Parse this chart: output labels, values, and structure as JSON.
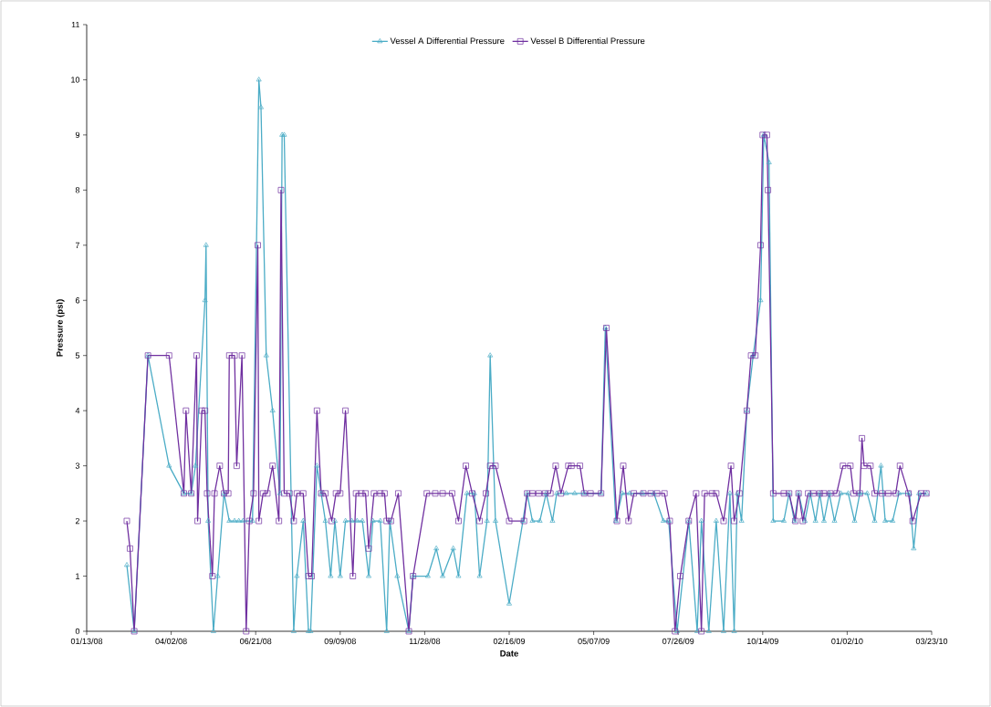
{
  "chart_data": {
    "type": "line",
    "xlabel": "Date",
    "ylabel": "Pressure (psi)",
    "xlim": [
      "2008-01-13",
      "2010-03-23"
    ],
    "xticks": [
      {
        "value": "2008-01-13",
        "label": "01/13/08"
      },
      {
        "value": "2008-04-02",
        "label": "04/02/08"
      },
      {
        "value": "2008-06-21",
        "label": "06/21/08"
      },
      {
        "value": "2008-09-09",
        "label": "09/09/08"
      },
      {
        "value": "2008-11-28",
        "label": "11/28/08"
      },
      {
        "value": "2009-02-16",
        "label": "02/16/09"
      },
      {
        "value": "2009-05-07",
        "label": "05/07/09"
      },
      {
        "value": "2009-07-26",
        "label": "07/26/09"
      },
      {
        "value": "2009-10-14",
        "label": "10/14/09"
      },
      {
        "value": "2010-01-02",
        "label": "01/02/10"
      },
      {
        "value": "2010-03-23",
        "label": "03/23/10"
      }
    ],
    "ylim": [
      0,
      11
    ],
    "yticks": [
      0,
      1,
      2,
      3,
      4,
      5,
      6,
      7,
      8,
      9,
      10,
      11
    ],
    "grid": false,
    "legend": "top",
    "line_style": "solid",
    "series": [
      {
        "name": "Vessel A Differential Pressure",
        "color": "#4bacc6",
        "marker": "triangle",
        "x": [
          "2008-02-20",
          "2008-02-27",
          "2008-03-11",
          "2008-03-31",
          "2008-04-14",
          "2008-04-21",
          "2008-04-25",
          "2008-05-04",
          "2008-05-05",
          "2008-05-07",
          "2008-05-12",
          "2008-05-16",
          "2008-05-22",
          "2008-05-27",
          "2008-06-01",
          "2008-06-05",
          "2008-06-09",
          "2008-06-18",
          "2008-06-24",
          "2008-06-26",
          "2008-07-01",
          "2008-07-07",
          "2008-07-14",
          "2008-07-16",
          "2008-07-18",
          "2008-07-27",
          "2008-07-30",
          "2008-08-05",
          "2008-08-10",
          "2008-08-12",
          "2008-08-18",
          "2008-08-22",
          "2008-08-26",
          "2008-08-31",
          "2008-09-04",
          "2008-09-09",
          "2008-09-14",
          "2008-09-20",
          "2008-09-25",
          "2008-09-30",
          "2008-10-06",
          "2008-10-10",
          "2008-10-17",
          "2008-10-23",
          "2008-10-26",
          "2008-11-02",
          "2008-11-13",
          "2008-11-17",
          "2008-12-01",
          "2008-12-09",
          "2008-12-15",
          "2008-12-25",
          "2008-12-30",
          "2009-01-07",
          "2009-01-14",
          "2009-01-19",
          "2009-01-26",
          "2009-01-29",
          "2009-02-03",
          "2009-02-16",
          "2009-03-01",
          "2009-03-05",
          "2009-03-10",
          "2009-03-17",
          "2009-03-23",
          "2009-03-29",
          "2009-04-02",
          "2009-04-11",
          "2009-04-19",
          "2009-04-28",
          "2009-05-14",
          "2009-05-18",
          "2009-05-28",
          "2009-06-03",
          "2009-06-10",
          "2009-06-22",
          "2009-07-03",
          "2009-07-12",
          "2009-07-17",
          "2009-07-25",
          "2009-08-05",
          "2009-08-13",
          "2009-08-17",
          "2009-08-24",
          "2009-08-31",
          "2009-09-07",
          "2009-09-13",
          "2009-09-17",
          "2009-09-20",
          "2009-09-24",
          "2009-09-29",
          "2009-10-05",
          "2009-10-12",
          "2009-10-15",
          "2009-10-20",
          "2009-10-24",
          "2009-11-03",
          "2009-11-08",
          "2009-11-13",
          "2009-11-17",
          "2009-11-23",
          "2009-11-28",
          "2009-12-03",
          "2009-12-07",
          "2009-12-11",
          "2009-12-16",
          "2009-12-21",
          "2009-12-27",
          "2010-01-03",
          "2010-01-09",
          "2010-01-14",
          "2010-01-21",
          "2010-01-28",
          "2010-02-03",
          "2010-02-07",
          "2010-02-14",
          "2010-02-20",
          "2010-03-02",
          "2010-03-06",
          "2010-03-11",
          "2010-03-18"
        ],
        "values": [
          1.2,
          0,
          5,
          3,
          2.5,
          2.5,
          3,
          6,
          7,
          2,
          0,
          1,
          2.5,
          2,
          2,
          2,
          2,
          2,
          10,
          9.5,
          5,
          4,
          2.5,
          9,
          9,
          0,
          1,
          2,
          0,
          0,
          3,
          2.5,
          2,
          1,
          2,
          1,
          2,
          2,
          2,
          2,
          1,
          2,
          2,
          0,
          2,
          1,
          0,
          1,
          1,
          1.5,
          1,
          1.5,
          1,
          2.5,
          2.5,
          1,
          2,
          5,
          2,
          0.5,
          2,
          2.5,
          2,
          2,
          2.5,
          2,
          2.5,
          2.5,
          2.5,
          2.5,
          2.5,
          5.5,
          2,
          2.5,
          2.5,
          2.5,
          2.5,
          2,
          2,
          0,
          2,
          0,
          2,
          0,
          2,
          0,
          2.5,
          0,
          2.5,
          2,
          4,
          5,
          6,
          9,
          8.5,
          2,
          2,
          2.5,
          2,
          2.5,
          2,
          2.5,
          2,
          2.5,
          2,
          2.5,
          2,
          2.5,
          2.5,
          2,
          2.5,
          2.5,
          2,
          3,
          2,
          2,
          2.5,
          2.5,
          1.5,
          2.5,
          2.5
        ]
      },
      {
        "name": "Vessel B Differential Pressure",
        "color": "#7030a0",
        "marker": "square",
        "x": [
          "2008-02-20",
          "2008-02-23",
          "2008-02-27",
          "2008-03-11",
          "2008-03-31",
          "2008-04-14",
          "2008-04-16",
          "2008-04-21",
          "2008-04-26",
          "2008-04-27",
          "2008-05-01",
          "2008-05-04",
          "2008-05-06",
          "2008-05-11",
          "2008-05-13",
          "2008-05-18",
          "2008-05-22",
          "2008-05-26",
          "2008-05-27",
          "2008-06-01",
          "2008-06-03",
          "2008-06-08",
          "2008-06-12",
          "2008-06-15",
          "2008-06-19",
          "2008-06-23",
          "2008-06-24",
          "2008-06-28",
          "2008-07-02",
          "2008-07-07",
          "2008-07-13",
          "2008-07-15",
          "2008-07-18",
          "2008-07-23",
          "2008-07-27",
          "2008-07-30",
          "2008-08-05",
          "2008-08-10",
          "2008-08-13",
          "2008-08-18",
          "2008-08-22",
          "2008-08-26",
          "2008-09-01",
          "2008-09-05",
          "2008-09-09",
          "2008-09-14",
          "2008-09-21",
          "2008-09-24",
          "2008-09-29",
          "2008-10-03",
          "2008-10-06",
          "2008-10-11",
          "2008-10-17",
          "2008-10-21",
          "2008-10-23",
          "2008-10-27",
          "2008-11-03",
          "2008-11-13",
          "2008-11-17",
          "2008-11-30",
          "2008-12-08",
          "2008-12-15",
          "2008-12-24",
          "2008-12-30",
          "2009-01-06",
          "2009-01-12",
          "2009-01-19",
          "2009-01-25",
          "2009-01-29",
          "2009-02-03",
          "2009-02-16",
          "2009-03-02",
          "2009-03-05",
          "2009-03-10",
          "2009-03-16",
          "2009-03-22",
          "2009-03-27",
          "2009-04-01",
          "2009-04-06",
          "2009-04-13",
          "2009-04-16",
          "2009-04-24",
          "2009-04-28",
          "2009-05-04",
          "2009-05-14",
          "2009-05-19",
          "2009-05-29",
          "2009-06-04",
          "2009-06-09",
          "2009-06-14",
          "2009-06-23",
          "2009-06-30",
          "2009-07-06",
          "2009-07-13",
          "2009-07-18",
          "2009-07-23",
          "2009-07-28",
          "2009-08-05",
          "2009-08-12",
          "2009-08-17",
          "2009-08-20",
          "2009-08-27",
          "2009-08-31",
          "2009-09-07",
          "2009-09-14",
          "2009-09-17",
          "2009-09-22",
          "2009-09-29",
          "2009-10-03",
          "2009-10-07",
          "2009-10-12",
          "2009-10-14",
          "2009-10-18",
          "2009-10-19",
          "2009-10-24",
          "2009-11-03",
          "2009-11-08",
          "2009-11-14",
          "2009-11-17",
          "2009-11-21",
          "2009-11-26",
          "2009-12-01",
          "2009-12-07",
          "2009-12-11",
          "2009-12-17",
          "2009-12-23",
          "2009-12-29",
          "2010-01-05",
          "2010-01-08",
          "2010-01-14",
          "2010-01-16",
          "2010-01-18",
          "2010-01-24",
          "2010-01-28",
          "2010-02-04",
          "2010-02-10",
          "2010-02-17",
          "2010-02-21",
          "2010-03-01",
          "2010-03-05",
          "2010-03-13",
          "2010-03-18"
        ],
        "values": [
          2,
          1.5,
          0,
          5,
          5,
          2.5,
          4,
          2.5,
          5,
          2,
          4,
          4,
          2.5,
          1,
          2.5,
          3,
          2.5,
          2.5,
          5,
          5,
          3,
          5,
          0,
          2,
          2.5,
          7,
          2,
          2.5,
          2.5,
          3,
          2,
          8,
          2.5,
          2.5,
          2,
          2.5,
          2.5,
          1,
          1,
          4,
          2.5,
          2.5,
          2,
          2.5,
          2.5,
          4,
          1,
          2.5,
          2.5,
          2.5,
          1.5,
          2.5,
          2.5,
          2.5,
          2,
          2,
          2.5,
          0,
          1,
          2.5,
          2.5,
          2.5,
          2.5,
          2,
          3,
          2.5,
          2,
          2.5,
          3,
          3,
          2,
          2,
          2.5,
          2.5,
          2.5,
          2.5,
          2.5,
          3,
          2.5,
          3,
          3,
          3,
          2.5,
          2.5,
          2.5,
          5.5,
          2,
          3,
          2,
          2.5,
          2.5,
          2.5,
          2.5,
          2.5,
          2,
          0,
          1,
          2,
          2.5,
          0,
          2.5,
          2.5,
          2.5,
          2,
          3,
          2,
          2.5,
          4,
          5,
          5,
          7,
          9,
          9,
          8,
          2.5,
          2.5,
          2.5,
          2,
          2.5,
          2,
          2.5,
          2.5,
          2.5,
          2.5,
          2.5,
          2.5,
          3,
          3,
          2.5,
          2.5,
          3.5,
          3,
          3,
          2.5,
          2.5,
          2.5,
          2.5,
          3,
          2.5,
          2,
          2.5,
          2.5
        ]
      }
    ]
  }
}
